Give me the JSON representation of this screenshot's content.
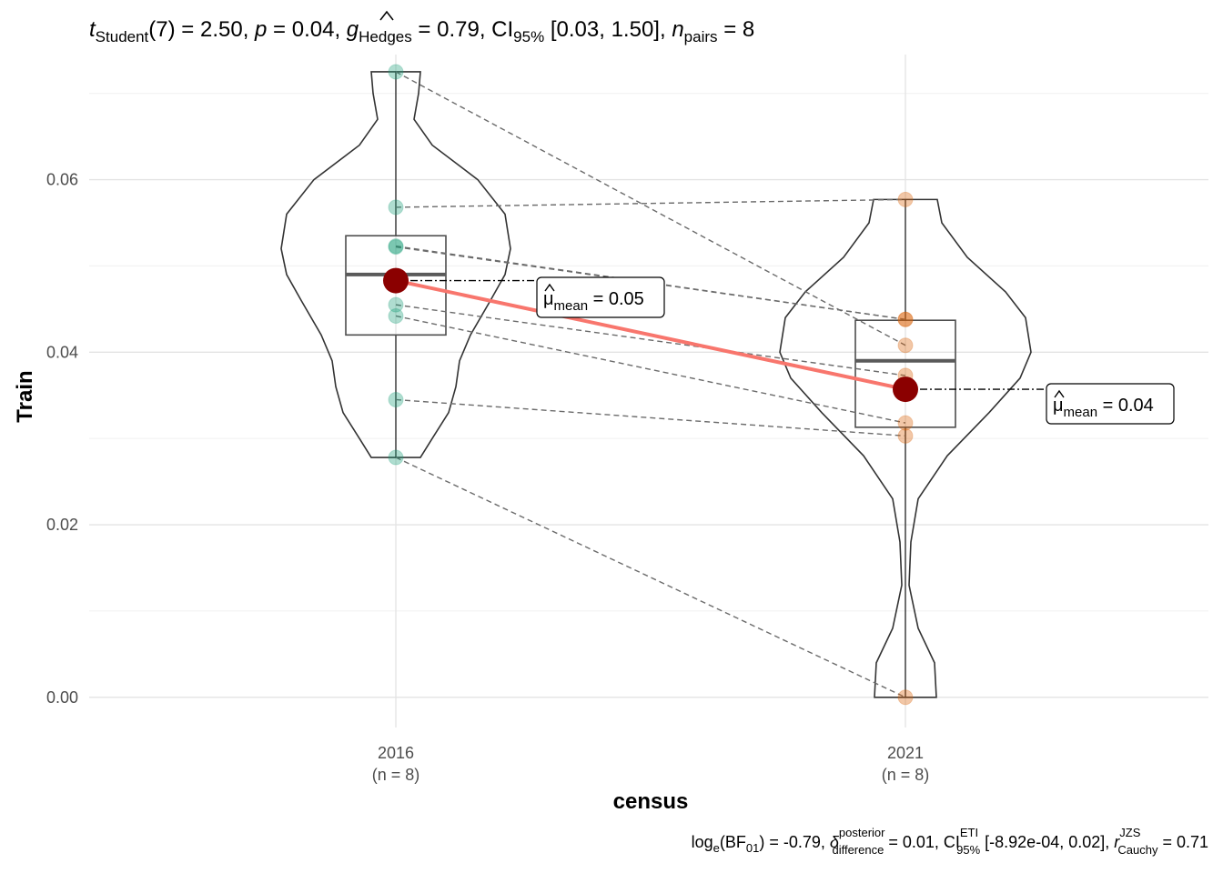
{
  "chart_data": {
    "type": "violin-paired",
    "title": {
      "stat_name": "t",
      "stat_sub": "Student",
      "df": "(7)",
      "stat_value": " = 2.50, ",
      "p_label": "p",
      "p_value": " = 0.04, ",
      "effect_name": "g",
      "effect_sub": "Hedges",
      "effect_value": " = 0.79, CI",
      "ci_sub": "95%",
      "ci_value": " [0.03, 1.50], ",
      "n_label": "n",
      "n_sub": "pairs",
      "n_value": " = 8"
    },
    "caption": {
      "p1": "log",
      "p1_sub": "e",
      "p2": "(BF",
      "p2_sub": "01",
      "p3": ") = -0.79, ",
      "delta": "δ",
      "delta_sup": "posterior",
      "delta_sub": "difference",
      "p4": " = 0.01, CI",
      "ci_sup": "ETI",
      "ci_sub": "95%",
      "p5": " [-8.92e-04, 0.02], ",
      "r": "r",
      "r_sup": "JZS",
      "r_sub": "Cauchy",
      "p6": " = 0.71"
    },
    "xlabel": "census",
    "ylabel": "Train",
    "ylim": [
      -0.0035,
      0.0745
    ],
    "yticks": [
      0.0,
      0.02,
      0.04,
      0.06
    ],
    "ytick_labels": [
      "0.00",
      "0.02",
      "0.04",
      "0.06"
    ],
    "grid": true,
    "groups": [
      {
        "name": "2016",
        "n_label": "(n = 8)",
        "color": "#1b9e77",
        "values": [
          0.0725,
          0.0568,
          0.0523,
          0.0522,
          0.0455,
          0.0442,
          0.0345,
          0.0278
        ],
        "box": {
          "q1": 0.042,
          "median": 0.049,
          "q3": 0.0535,
          "min": 0.0278,
          "max": 0.0725
        },
        "mean": 0.0483,
        "mean_label_pre": "μ",
        "mean_label_sub": "mean",
        "mean_label_value": " = 0.05"
      },
      {
        "name": "2021",
        "n_label": "(n = 8)",
        "color": "#d95f02",
        "values": [
          0.0408,
          0.0577,
          0.0438,
          0.0438,
          0.0373,
          0.0318,
          0.0303,
          0.0
        ],
        "box": {
          "q1": 0.0313,
          "median": 0.039,
          "q3": 0.0437,
          "min": 0.0,
          "max": 0.0577
        },
        "mean": 0.0357,
        "mean_label_pre": "μ",
        "mean_label_sub": "mean",
        "mean_label_value": " = 0.04"
      }
    ],
    "mean_point_color": "#8b0000",
    "mean_line_color": "#f8766d"
  }
}
